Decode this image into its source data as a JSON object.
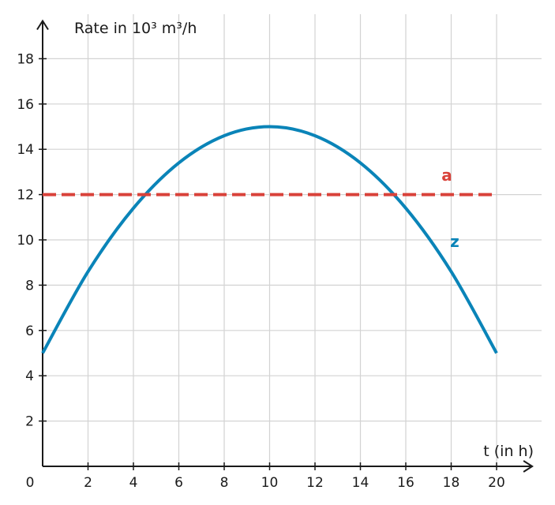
{
  "chart_data": {
    "type": "line",
    "ylabel": "Rate in 10³ m³/h",
    "xlabel": "t (in h)",
    "origin_label": "0",
    "xlim": [
      0,
      21.5
    ],
    "ylim": [
      0,
      19.6
    ],
    "x_ticks": [
      2,
      4,
      6,
      8,
      10,
      12,
      14,
      16,
      18,
      20
    ],
    "y_ticks": [
      2,
      4,
      6,
      8,
      10,
      12,
      14,
      16,
      18
    ],
    "grid": true,
    "series": [
      {
        "name": "z",
        "style": "solid",
        "color": "#0a84b8",
        "x": [
          0,
          2,
          4,
          6,
          8,
          10,
          12,
          14,
          16,
          18,
          20
        ],
        "y": [
          5,
          8.6,
          11.4,
          13.4,
          14.6,
          15,
          14.6,
          13.4,
          11.4,
          8.6,
          5
        ]
      },
      {
        "name": "a",
        "style": "dashed",
        "color": "#d9423a",
        "x": [
          0,
          20
        ],
        "y": [
          12,
          12
        ]
      }
    ]
  }
}
